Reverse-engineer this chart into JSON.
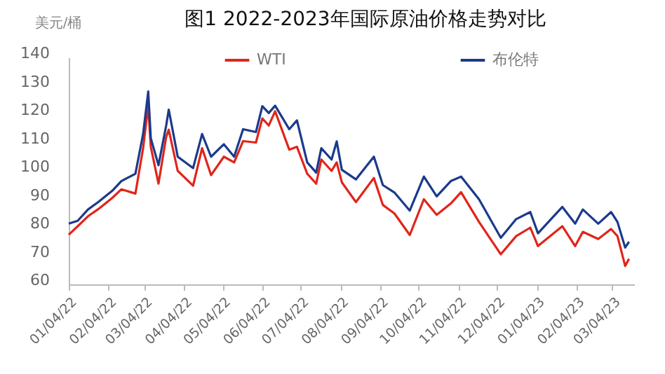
{
  "chart_data": {
    "type": "line",
    "title": "图1 2022-2023年国际原油价格走势对比",
    "ylabel": "美元/桶",
    "x": [
      "2022-01-04",
      "2022-01-11",
      "2022-01-19",
      "2022-01-27",
      "2022-02-07",
      "2022-02-14",
      "2022-02-25",
      "2022-03-03",
      "2022-03-07",
      "2022-03-09",
      "2022-03-15",
      "2022-03-21",
      "2022-03-23",
      "2022-03-30",
      "2022-04-11",
      "2022-04-18",
      "2022-04-25",
      "2022-05-05",
      "2022-05-13",
      "2022-05-20",
      "2022-05-30",
      "2022-06-04",
      "2022-06-09",
      "2022-06-14",
      "2022-06-25",
      "2022-07-01",
      "2022-07-09",
      "2022-07-16",
      "2022-07-20",
      "2022-07-28",
      "2022-08-01",
      "2022-08-05",
      "2022-08-16",
      "2022-08-30",
      "2022-09-06",
      "2022-09-15",
      "2022-09-27",
      "2022-10-08",
      "2022-10-18",
      "2022-10-29",
      "2022-11-06",
      "2022-11-20",
      "2022-12-07",
      "2022-12-19",
      "2022-12-30",
      "2023-01-05",
      "2023-01-24",
      "2023-02-03",
      "2023-02-09",
      "2023-02-21",
      "2023-03-03",
      "2023-03-08",
      "2023-03-14",
      "2023-03-17"
    ],
    "series": [
      {
        "name": "WTI",
        "color": "#e0251b",
        "values": [
          77.5,
          80.5,
          84,
          86.5,
          90.5,
          93.5,
          92,
          108,
          123,
          108.5,
          95.5,
          112,
          114.5,
          100,
          94.8,
          108,
          98.5,
          105,
          103,
          110.5,
          110,
          118.5,
          116,
          121,
          107.5,
          108.5,
          99,
          95.5,
          104,
          100,
          103,
          96,
          89,
          97.5,
          88,
          85,
          77.4,
          90,
          84.5,
          88.5,
          92.5,
          82,
          70.6,
          77,
          80,
          73.5,
          80.5,
          73.5,
          78.5,
          76,
          79.5,
          77,
          66.5,
          69
        ]
      },
      {
        "name": "布伦特",
        "color": "#1a3a8c",
        "values": [
          81.4,
          82.4,
          86.4,
          89,
          93,
          96.4,
          99,
          113,
          128,
          111.5,
          102,
          116,
          121.6,
          105,
          101,
          113,
          105,
          109.4,
          105,
          114.7,
          113.7,
          122.8,
          120.4,
          123,
          114.7,
          117.8,
          103,
          99.4,
          108,
          104,
          110.4,
          100.4,
          97,
          105,
          95,
          92.4,
          86,
          98,
          91,
          96.4,
          98,
          90,
          76.4,
          83,
          85.5,
          78,
          87.3,
          81.4,
          86.4,
          81.4,
          85.5,
          82,
          73,
          75
        ]
      }
    ],
    "xlim": [
      "2022-01-04",
      "2023-03-21"
    ],
    "xticks": [
      {
        "value": "2022-01-04",
        "label": "01/04/22"
      },
      {
        "value": "2022-02-04",
        "label": "02/04/22"
      },
      {
        "value": "2022-03-04",
        "label": "03/04/22"
      },
      {
        "value": "2022-04-04",
        "label": "04/04/22"
      },
      {
        "value": "2022-05-04",
        "label": "05/04/22"
      },
      {
        "value": "2022-06-04",
        "label": "06/04/22"
      },
      {
        "value": "2022-07-04",
        "label": "07/04/22"
      },
      {
        "value": "2022-08-04",
        "label": "08/04/22"
      },
      {
        "value": "2022-09-04",
        "label": "09/04/22"
      },
      {
        "value": "2022-10-04",
        "label": "10/04/22"
      },
      {
        "value": "2022-11-04",
        "label": "11/04/22"
      },
      {
        "value": "2022-12-04",
        "label": "12/04/22"
      },
      {
        "value": "2023-01-04",
        "label": "01/04/23"
      },
      {
        "value": "2023-02-04",
        "label": "02/04/23"
      },
      {
        "value": "2023-03-04",
        "label": "03/04/23"
      }
    ],
    "ylim": [
      60,
      140
    ],
    "yticks": [
      60,
      70,
      80,
      90,
      100,
      110,
      120,
      130,
      140
    ],
    "grid": false,
    "legend": "top",
    "marker": "none",
    "line_style": "solid"
  }
}
